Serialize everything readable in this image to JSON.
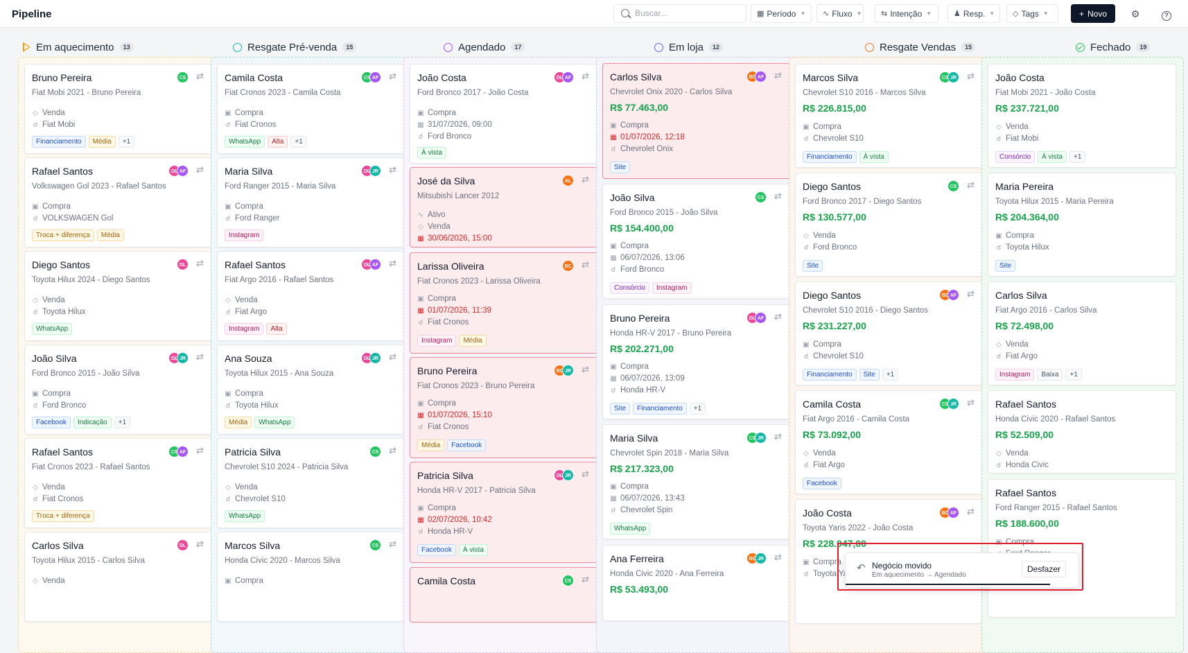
{
  "header": {
    "title": "Pipeline",
    "search_placeholder": "Buscar...",
    "filters": [
      {
        "label": "Período",
        "icon": "calendar-icon"
      },
      {
        "label": "Fluxo",
        "icon": "flow-icon"
      },
      {
        "label": "Intenção",
        "icon": "arrows-icon"
      },
      {
        "label": "Resp.",
        "icon": "user-icon"
      },
      {
        "label": "Tags",
        "icon": "tag-icon"
      }
    ],
    "new_label": "Novo"
  },
  "columns": [
    {
      "name": "Em aquecimento",
      "count": "13"
    },
    {
      "name": "Resgate Pré-venda",
      "count": "15"
    },
    {
      "name": "Agendado",
      "count": "17"
    },
    {
      "name": "Em loja",
      "count": "12"
    },
    {
      "name": "Resgate Vendas",
      "count": "15"
    },
    {
      "name": "Fechado",
      "count": "19"
    }
  ],
  "cards": {
    "c0": [
      {
        "name": "Bruno Pereira",
        "sub": "Fiat Mobi 2021 - Bruno Pereira",
        "l1": "Venda",
        "l2": "Fiat Mobi",
        "tags": [
          "Financiamento",
          "Média",
          "+1"
        ]
      },
      {
        "name": "Rafael Santos",
        "sub": "Volkswagen Gol 2023 - Rafael Santos",
        "l1": "Compra",
        "l2": "VOLKSWAGEN Gol",
        "tags": [
          "Troca + diferença",
          "Média"
        ]
      },
      {
        "name": "Diego Santos",
        "sub": "Toyota Hilux 2024 - Diego Santos",
        "l1": "Venda",
        "l2": "Toyota Hilux",
        "tags": [
          "WhatsApp"
        ]
      },
      {
        "name": "João Silva",
        "sub": "Ford Bronco 2015 - João Silva",
        "l1": "Compra",
        "l2": "Ford Bronco",
        "tags": [
          "Facebook",
          "Indicação",
          "+1"
        ]
      },
      {
        "name": "Rafael Santos",
        "sub": "Fiat Cronos 2023 - Rafael Santos",
        "l1": "Venda",
        "l2": "Fiat Cronos",
        "tags": [
          "Troca + diferença"
        ]
      },
      {
        "name": "Carlos Silva",
        "sub": "Toyota Hilux 2015 - Carlos Silva",
        "l1": "Venda"
      }
    ],
    "c1": [
      {
        "name": "Camila Costa",
        "sub": "Fiat Cronos 2023 - Camila Costa",
        "l1": "Compra",
        "l2": "Fiat Cronos",
        "tags": [
          "WhatsApp",
          "Alta",
          "+1"
        ]
      },
      {
        "name": "Maria Silva",
        "sub": "Ford Ranger 2015 - Maria Silva",
        "l1": "Compra",
        "l2": "Ford Ranger",
        "tags": [
          "Instagram"
        ]
      },
      {
        "name": "Rafael Santos",
        "sub": "Fiat Argo 2016 - Rafael Santos",
        "l1": "Venda",
        "l2": "Fiat Argo",
        "tags": [
          "Instagram",
          "Alta"
        ]
      },
      {
        "name": "Ana Souza",
        "sub": "Toyota Hilux 2015 - Ana Souza",
        "l1": "Compra",
        "l2": "Toyota Hilux",
        "tags": [
          "Média",
          "WhatsApp"
        ]
      },
      {
        "name": "Patricia Silva",
        "sub": "Chevrolet S10 2024 - Patricia Silva",
        "l1": "Venda",
        "l2": "Chevrolet S10",
        "tags": [
          "WhatsApp"
        ]
      },
      {
        "name": "Marcos Silva",
        "sub": "Honda Civic 2020 - Marcos Silva",
        "l1": "Compra"
      }
    ],
    "c2": [
      {
        "name": "João Costa",
        "sub": "Ford Bronco 2017 - João Costa",
        "l1": "Compra",
        "l2": "31/07/2026, 09:00",
        "l3": "Ford Bronco",
        "tags": [
          "À vista"
        ]
      },
      {
        "name": "José da Silva",
        "sub": "Mitsubishi Lancer 2012",
        "l1": "Ativo",
        "l2": "Venda",
        "l3": "30/06/2026, 15:00"
      },
      {
        "name": "Larissa Oliveira",
        "sub": "Fiat Cronos 2023 - Larissa Oliveira",
        "l1": "Compra",
        "l2": "01/07/2026, 11:39",
        "l3": "Fiat Cronos",
        "tags": [
          "Instagram",
          "Média"
        ]
      },
      {
        "name": "Bruno Pereira",
        "sub": "Fiat Cronos 2023 - Bruno Pereira",
        "l1": "Compra",
        "l2": "01/07/2026, 15:10",
        "l3": "Fiat Cronos",
        "tags": [
          "Média",
          "Facebook"
        ]
      },
      {
        "name": "Patricia Silva",
        "sub": "Honda HR-V 2017 - Patricia Silva",
        "l1": "Compra",
        "l2": "02/07/2026, 10:42",
        "l3": "Honda HR-V",
        "tags": [
          "Facebook",
          "À vista"
        ]
      },
      {
        "name": "Camila Costa"
      }
    ],
    "c3": [
      {
        "name": "Carlos Silva",
        "sub": "Chevrolet Onix 2020 - Carlos Silva",
        "price": "R$ 77.463,00",
        "l1": "Compra",
        "l2": "01/07/2026, 12:18",
        "l3": "Chevrolet Onix",
        "tags": [
          "Site"
        ]
      },
      {
        "name": "João Silva",
        "sub": "Ford Bronco 2015 - João Silva",
        "price": "R$ 154.400,00",
        "l1": "Compra",
        "l2": "06/07/2026, 13:06",
        "l3": "Ford Bronco",
        "tags": [
          "Consórcio",
          "Instagram"
        ]
      },
      {
        "name": "Bruno Pereira",
        "sub": "Honda HR-V 2017 - Bruno Pereira",
        "price": "R$ 202.271,00",
        "l1": "Compra",
        "l2": "06/07/2026, 13:09",
        "l3": "Honda HR-V",
        "tags": [
          "Site",
          "Financiamento",
          "+1"
        ]
      },
      {
        "name": "Maria Silva",
        "sub": "Chevrolet Spin 2018 - Maria Silva",
        "price": "R$ 217.323,00",
        "l1": "Compra",
        "l2": "06/07/2026, 13:43",
        "l3": "Chevrolet Spin",
        "tags": [
          "WhatsApp"
        ]
      },
      {
        "name": "Ana Ferreira",
        "sub": "Honda Civic 2020 - Ana Ferreira",
        "price": "R$ 53.493,00"
      }
    ],
    "c4": [
      {
        "name": "Marcos Silva",
        "sub": "Chevrolet S10 2016 - Marcos Silva",
        "price": "R$ 226.815,00",
        "l1": "Compra",
        "l2": "Chevrolet S10",
        "tags": [
          "Financiamento",
          "À vista"
        ]
      },
      {
        "name": "Diego Santos",
        "sub": "Ford Bronco 2017 - Diego Santos",
        "price": "R$ 130.577,00",
        "l1": "Venda",
        "l2": "Ford Bronco",
        "tags": [
          "Site"
        ]
      },
      {
        "name": "Diego Santos",
        "sub": "Chevrolet S10 2016 - Diego Santos",
        "price": "R$ 231.227,00",
        "l1": "Compra",
        "l2": "Chevrolet S10",
        "tags": [
          "Financiamento",
          "Site",
          "+1"
        ]
      },
      {
        "name": "Camila Costa",
        "sub": "Fiat Argo 2016 - Camila Costa",
        "price": "R$ 73.092,00",
        "l1": "Venda",
        "l2": "Fiat Argo",
        "tags": [
          "Facebook"
        ]
      },
      {
        "name": "João Costa",
        "sub": "Toyota Yaris 2022 - João Costa",
        "price": "R$ 228.047,00",
        "l1": "Compra",
        "l2": "Toyota Yaris"
      }
    ],
    "c5": [
      {
        "name": "João Costa",
        "sub": "Fiat Mobi 2021 - João Costa",
        "price": "R$ 237.721,00",
        "l1": "Venda",
        "l2": "Fiat Mobi",
        "tags": [
          "Consórcio",
          "À vista",
          "+1"
        ]
      },
      {
        "name": "Maria Pereira",
        "sub": "Toyota Hilux 2015 - Maria Pereira",
        "price": "R$ 204.364,00",
        "l1": "Compra",
        "l2": "Toyota Hilux",
        "tags": [
          "Site"
        ]
      },
      {
        "name": "Carlos Silva",
        "sub": "Fiat Argo 2016 - Carlos Silva",
        "price": "R$ 72.498,00",
        "l1": "Venda",
        "l2": "Fiat Argo",
        "tags": [
          "Instagram",
          "Baixa",
          "+1"
        ]
      },
      {
        "name": "Rafael Santos",
        "sub": "Honda Civic 2020 - Rafael Santos",
        "price": "R$ 52.509,00",
        "l1": "Venda",
        "l2": "Honda Civic"
      },
      {
        "name": "Rafael Santos",
        "sub": "Ford Ranger 2015 - Rafael Santos",
        "price": "R$ 188.600,00",
        "l1": "Compra",
        "l2": "Ford Ranger"
      }
    ]
  },
  "toast": {
    "title": "Negócio movido",
    "detail": "Em aquecimento → Agendado",
    "undo_label": "Desfazer"
  },
  "colors": {
    "price_green": "#16a34a",
    "overdue_red": "#dc2626",
    "primary_dark": "#0f172a"
  }
}
